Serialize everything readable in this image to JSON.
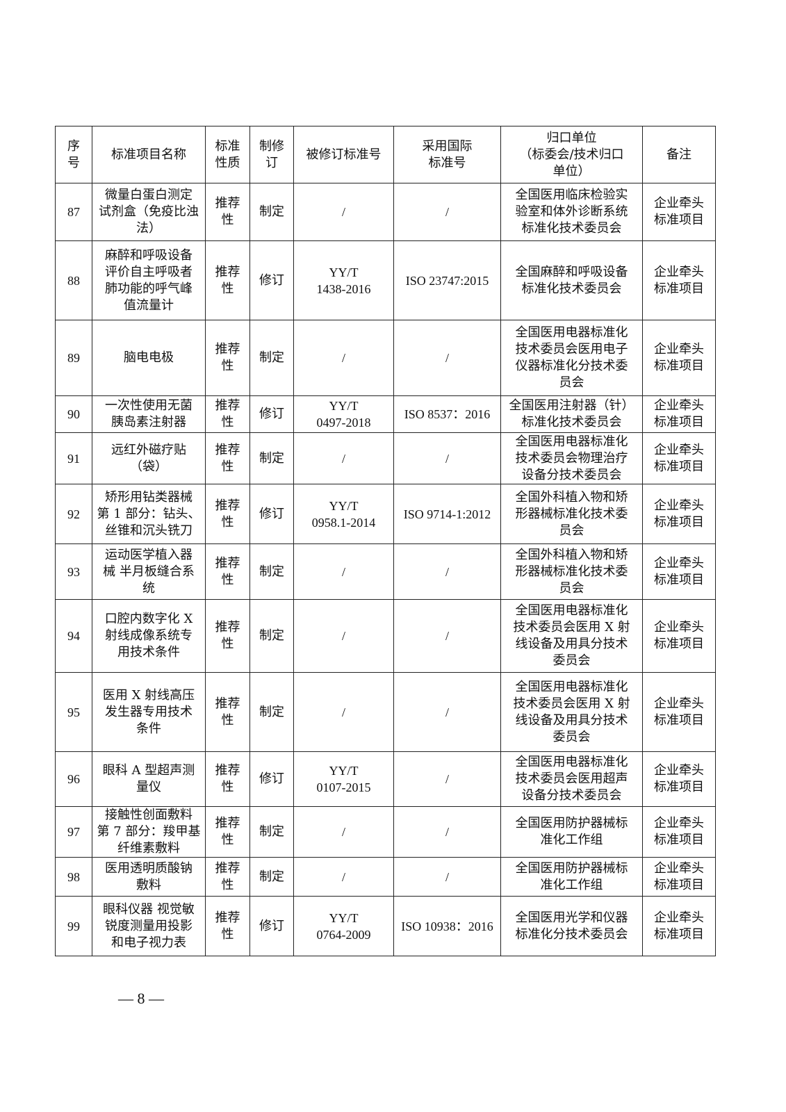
{
  "table": {
    "headers": [
      "序\n号",
      "标准项目名称",
      "标准\n性质",
      "制修\n订",
      "被修订标准号",
      "采用国际\n标准号",
      "归口单位\n（标委会/技术归口\n单位）",
      "备注"
    ],
    "rows": [
      {
        "no": "87",
        "name": "微量白蛋白测定\n试剂盒（免疫比浊\n法）",
        "nature": "推荐\n性",
        "type": "制定",
        "revised": "/",
        "intl": "/",
        "unit": "全国医用临床检验实\n验室和体外诊断系统\n标准化技术委员会",
        "note": "企业牵头\n标准项目"
      },
      {
        "no": "88",
        "name": "麻醉和呼吸设备\n评价自主呼吸者\n肺功能的呼气峰\n值流量计",
        "nature": "推荐\n性",
        "type": "修订",
        "revised": "YY/T\n1438-2016",
        "intl": "ISO 23747:2015",
        "unit": "全国麻醉和呼吸设备\n标准化技术委员会",
        "note": "企业牵头\n标准项目"
      },
      {
        "no": "89",
        "name": "脑电电极",
        "nature": "推荐\n性",
        "type": "制定",
        "revised": "/",
        "intl": "/",
        "unit": "全国医用电器标准化\n技术委员会医用电子\n仪器标准化分技术委\n员会",
        "note": "企业牵头\n标准项目"
      },
      {
        "no": "90",
        "name": "一次性使用无菌\n胰岛素注射器",
        "nature": "推荐\n性",
        "type": "修订",
        "revised": "YY/T\n0497-2018",
        "intl": "ISO 8537：2016",
        "unit": "全国医用注射器（针）\n标准化技术委员会",
        "note": "企业牵头\n标准项目"
      },
      {
        "no": "91",
        "name": "远红外磁疗贴\n（袋）",
        "nature": "推荐\n性",
        "type": "制定",
        "revised": "/",
        "intl": "/",
        "unit": "全国医用电器标准化\n技术委员会物理治疗\n设备分技术委员会",
        "note": "企业牵头\n标准项目"
      },
      {
        "no": "92",
        "name": "矫形用钻类器械\n第 1 部分：钻头、\n丝锥和沉头铣刀",
        "nature": "推荐\n性",
        "type": "修订",
        "revised": "YY/T\n0958.1-2014",
        "intl": "ISO 9714-1:2012",
        "unit": "全国外科植入物和矫\n形器械标准化技术委\n员会",
        "note": "企业牵头\n标准项目"
      },
      {
        "no": "93",
        "name": "运动医学植入器\n械  半月板缝合系\n统",
        "nature": "推荐\n性",
        "type": "制定",
        "revised": "/",
        "intl": "/",
        "unit": "全国外科植入物和矫\n形器械标准化技术委\n员会",
        "note": "企业牵头\n标准项目"
      },
      {
        "no": "94",
        "name": "口腔内数字化 X\n射线成像系统专\n用技术条件",
        "nature": "推荐\n性",
        "type": "制定",
        "revised": "/",
        "intl": "/",
        "unit": "全国医用电器标准化\n技术委员会医用 X 射\n线设备及用具分技术\n委员会",
        "note": "企业牵头\n标准项目"
      },
      {
        "no": "95",
        "name": "医用 X 射线高压\n发生器专用技术\n条件",
        "nature": "推荐\n性",
        "type": "制定",
        "revised": "/",
        "intl": "/",
        "unit": "全国医用电器标准化\n技术委员会医用 X 射\n线设备及用具分技术\n委员会",
        "note": "企业牵头\n标准项目"
      },
      {
        "no": "96",
        "name": "眼科 A 型超声测\n量仪",
        "nature": "推荐\n性",
        "type": "修订",
        "revised": "YY/T\n0107-2015",
        "intl": "/",
        "unit": "全国医用电器标准化\n技术委员会医用超声\n设备分技术委员会",
        "note": "企业牵头\n标准项目"
      },
      {
        "no": "97",
        "name": "接触性创面敷料\n第 7 部分：羧甲基\n纤维素敷料",
        "nature": "推荐\n性",
        "type": "制定",
        "revised": "/",
        "intl": "/",
        "unit": "全国医用防护器械标\n准化工作组",
        "note": "企业牵头\n标准项目"
      },
      {
        "no": "98",
        "name": "医用透明质酸钠\n敷料",
        "nature": "推荐\n性",
        "type": "制定",
        "revised": "/",
        "intl": "/",
        "unit": "全国医用防护器械标\n准化工作组",
        "note": "企业牵头\n标准项目"
      },
      {
        "no": "99",
        "name": "眼科仪器  视觉敏\n锐度测量用投影\n和电子视力表",
        "nature": "推荐\n性",
        "type": "修订",
        "revised": "YY/T\n0764-2009",
        "intl": "ISO 10938：2016",
        "unit": "全国医用光学和仪器\n标准化分技术委员会",
        "note": "企业牵头\n标准项目"
      }
    ]
  },
  "page_number": "— 8 —"
}
